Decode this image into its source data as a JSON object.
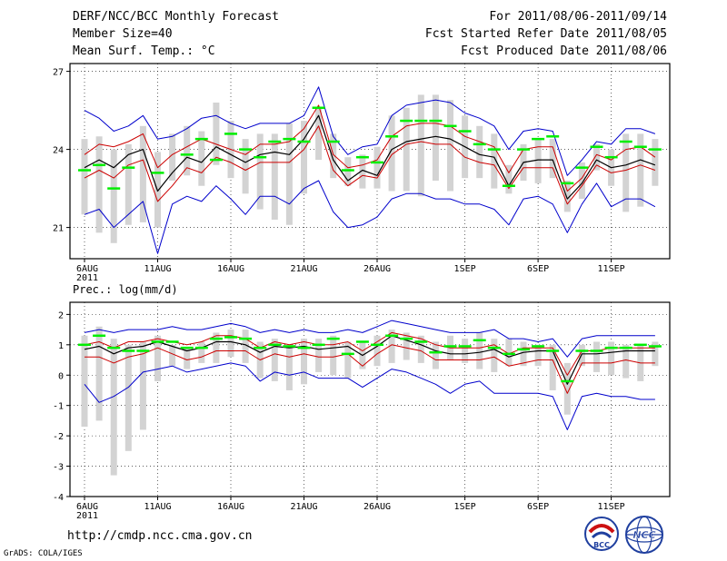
{
  "header": {
    "title": "DERF/NCC/BCC Monthly Forecast",
    "member_size": "Member Size=40",
    "variable": "Mean Surf. Temp.: °C",
    "period": "For 2011/08/06-2011/09/14",
    "fcst_started": "Fcst Started Refer Date 2011/08/05",
    "fcst_produced": "Fcst Produced Date 2011/08/06"
  },
  "footer": {
    "url": "http://cmdp.ncc.cma.gov.cn",
    "credit": "GrADS: COLA/IGES",
    "logo_bcc": "BCC",
    "logo_ncc": "NCC"
  },
  "colors": {
    "max_min": "#0000cc",
    "spread": "#cc0000",
    "mean": "#000000",
    "box": "#d3d3d3",
    "obs": "#00ee00"
  },
  "chart_data": [
    {
      "type": "line",
      "title": "Mean Surf. Temp.: °C",
      "x_tick_labels": [
        "6AUG",
        "11AUG",
        "16AUG",
        "21AUG",
        "26AUG",
        "1SEP",
        "6SEP",
        "11SEP"
      ],
      "x_year_label": "2011",
      "ylim": [
        19.8,
        27.3
      ],
      "y_ticks": [
        21,
        24,
        27
      ],
      "y_tick_labels": [
        "21",
        "24",
        "27"
      ],
      "grid": true,
      "series": [
        {
          "name": "max",
          "values": [
            25.5,
            25.2,
            24.7,
            24.9,
            25.3,
            24.4,
            24.5,
            24.8,
            25.2,
            25.3,
            25.0,
            24.8,
            25.0,
            25.0,
            25.0,
            25.3,
            26.4,
            24.5,
            23.8,
            24.1,
            24.2,
            25.3,
            25.7,
            25.8,
            25.9,
            25.8,
            25.4,
            25.2,
            24.9,
            24.0,
            24.7,
            24.8,
            24.7,
            23.0,
            23.6,
            24.3,
            24.2,
            24.8,
            24.8,
            24.6
          ]
        },
        {
          "name": "spread_upper",
          "values": [
            23.8,
            24.2,
            24.1,
            24.3,
            24.6,
            23.3,
            23.8,
            24.1,
            24.4,
            24.2,
            24.0,
            23.8,
            24.2,
            24.2,
            24.3,
            24.8,
            25.7,
            23.8,
            23.3,
            23.4,
            23.6,
            24.5,
            24.9,
            25.0,
            25.0,
            24.9,
            24.5,
            24.3,
            24.1,
            23.1,
            24.0,
            24.1,
            24.1,
            22.4,
            22.9,
            23.8,
            23.6,
            24.0,
            24.1,
            23.7
          ]
        },
        {
          "name": "ensemble_mean",
          "values": [
            23.3,
            23.6,
            23.3,
            23.8,
            24.0,
            22.4,
            23.1,
            23.7,
            23.5,
            24.1,
            23.8,
            23.5,
            23.8,
            23.9,
            23.8,
            24.4,
            25.3,
            23.6,
            22.8,
            23.2,
            23.0,
            24.0,
            24.3,
            24.4,
            24.5,
            24.4,
            24.1,
            23.8,
            23.7,
            22.6,
            23.5,
            23.6,
            23.6,
            22.1,
            22.7,
            23.6,
            23.3,
            23.4,
            23.6,
            23.4
          ]
        },
        {
          "name": "spread_lower",
          "values": [
            22.9,
            23.2,
            22.9,
            23.4,
            23.6,
            22.0,
            22.6,
            23.3,
            23.1,
            23.7,
            23.5,
            23.2,
            23.5,
            23.5,
            23.5,
            24.0,
            24.9,
            23.2,
            22.6,
            23.0,
            22.9,
            23.8,
            24.2,
            24.3,
            24.2,
            24.2,
            23.7,
            23.5,
            23.4,
            22.5,
            23.3,
            23.3,
            23.3,
            21.9,
            22.6,
            23.4,
            23.1,
            23.2,
            23.4,
            23.2
          ]
        },
        {
          "name": "min",
          "values": [
            21.5,
            21.7,
            21.0,
            21.5,
            22.0,
            20.0,
            21.9,
            22.2,
            22.0,
            22.6,
            22.1,
            21.5,
            22.2,
            22.2,
            21.9,
            22.5,
            22.8,
            21.6,
            21.0,
            21.1,
            21.4,
            22.1,
            22.3,
            22.3,
            22.1,
            22.1,
            21.9,
            21.9,
            21.7,
            21.1,
            22.1,
            22.2,
            21.9,
            20.8,
            21.9,
            22.7,
            21.8,
            22.1,
            22.1,
            21.8
          ]
        },
        {
          "name": "observed",
          "values": [
            23.2,
            23.4,
            22.5,
            23.3,
            null,
            23.1,
            null,
            23.8,
            24.4,
            23.6,
            24.6,
            24.0,
            23.7,
            24.3,
            24.4,
            24.3,
            25.6,
            24.3,
            23.2,
            23.7,
            23.5,
            24.5,
            25.1,
            25.1,
            25.1,
            24.9,
            24.7,
            24.2,
            24.0,
            22.6,
            24.0,
            24.4,
            24.5,
            22.7,
            23.3,
            24.1,
            23.7,
            24.3,
            24.1,
            24.0
          ]
        },
        {
          "name": "box_top",
          "values": [
            24.4,
            24.5,
            24.0,
            24.2,
            24.9,
            23.9,
            24.6,
            24.9,
            24.7,
            25.8,
            25.1,
            24.4,
            24.6,
            24.6,
            25.0,
            25.1,
            25.6,
            24.6,
            23.7,
            23.8,
            24.1,
            25.3,
            25.6,
            26.1,
            26.1,
            25.9,
            25.3,
            24.9,
            24.6,
            23.4,
            24.2,
            24.4,
            24.4,
            22.8,
            23.5,
            24.2,
            24.0,
            24.6,
            24.6,
            24.4
          ]
        },
        {
          "name": "box_bottom",
          "values": [
            21.5,
            20.8,
            20.4,
            21.1,
            21.2,
            21.0,
            22.8,
            23.0,
            22.6,
            23.4,
            22.9,
            22.3,
            21.7,
            21.3,
            21.1,
            22.3,
            23.6,
            22.9,
            22.6,
            22.5,
            22.5,
            22.4,
            22.4,
            22.2,
            22.8,
            22.4,
            22.9,
            22.9,
            22.5,
            22.3,
            22.8,
            22.7,
            22.9,
            21.6,
            22.1,
            23.2,
            22.6,
            21.6,
            21.8,
            22.6
          ]
        }
      ]
    },
    {
      "type": "line",
      "title": "Prec.: log(mm/d)",
      "x_tick_labels": [
        "6AUG",
        "11AUG",
        "16AUG",
        "21AUG",
        "26AUG",
        "1SEP",
        "6SEP",
        "11SEP"
      ],
      "x_year_label": "2011",
      "ylim": [
        -4,
        2.4
      ],
      "y_ticks": [
        -4,
        -3,
        -2,
        -1,
        0,
        1,
        2
      ],
      "y_tick_labels": [
        "-4",
        "-3",
        "-2",
        "-1",
        "0",
        "1",
        "2"
      ],
      "grid": true,
      "series": [
        {
          "name": "max",
          "values": [
            1.4,
            1.5,
            1.4,
            1.5,
            1.5,
            1.5,
            1.6,
            1.5,
            1.5,
            1.6,
            1.7,
            1.6,
            1.4,
            1.5,
            1.4,
            1.5,
            1.4,
            1.4,
            1.5,
            1.4,
            1.6,
            1.8,
            1.7,
            1.6,
            1.5,
            1.4,
            1.4,
            1.4,
            1.5,
            1.2,
            1.2,
            1.1,
            1.2,
            0.6,
            1.2,
            1.3,
            1.3,
            1.3,
            1.3,
            1.3
          ]
        },
        {
          "name": "spread_upper",
          "values": [
            1.0,
            1.1,
            0.9,
            1.1,
            1.1,
            1.2,
            1.1,
            1.0,
            1.1,
            1.3,
            1.3,
            1.2,
            0.9,
            1.1,
            1.0,
            1.1,
            1.0,
            1.0,
            1.1,
            0.8,
            1.1,
            1.4,
            1.3,
            1.2,
            1.0,
            0.9,
            0.9,
            0.9,
            1.0,
            0.7,
            0.9,
            0.9,
            0.9,
            0.0,
            0.8,
            0.8,
            0.9,
            0.9,
            0.9,
            0.9
          ]
        },
        {
          "name": "ensemble_mean",
          "values": [
            0.85,
            0.95,
            0.7,
            0.9,
            0.95,
            1.1,
            0.95,
            0.8,
            0.9,
            1.1,
            1.1,
            1.0,
            0.75,
            0.95,
            0.9,
            0.95,
            0.85,
            0.9,
            0.95,
            0.65,
            0.95,
            1.3,
            1.15,
            1.0,
            0.8,
            0.7,
            0.7,
            0.75,
            0.85,
            0.6,
            0.75,
            0.8,
            0.8,
            -0.3,
            0.7,
            0.7,
            0.75,
            0.8,
            0.8,
            0.8
          ]
        },
        {
          "name": "spread_lower",
          "values": [
            0.6,
            0.6,
            0.4,
            0.6,
            0.7,
            0.9,
            0.7,
            0.5,
            0.6,
            0.8,
            0.8,
            0.8,
            0.5,
            0.7,
            0.6,
            0.7,
            0.6,
            0.6,
            0.7,
            0.3,
            0.7,
            1.0,
            0.9,
            0.8,
            0.5,
            0.5,
            0.5,
            0.5,
            0.6,
            0.3,
            0.4,
            0.5,
            0.5,
            -0.6,
            0.4,
            0.4,
            0.4,
            0.5,
            0.4,
            0.4
          ]
        },
        {
          "name": "min",
          "values": [
            -0.3,
            -0.9,
            -0.7,
            -0.4,
            0.1,
            0.2,
            0.3,
            0.1,
            0.2,
            0.3,
            0.4,
            0.3,
            -0.2,
            0.1,
            0.0,
            0.1,
            -0.1,
            -0.1,
            -0.1,
            -0.4,
            -0.1,
            0.2,
            0.1,
            -0.1,
            -0.3,
            -0.6,
            -0.3,
            -0.2,
            -0.6,
            -0.6,
            -0.6,
            -0.6,
            -0.7,
            -1.8,
            -0.7,
            -0.6,
            -0.7,
            -0.7,
            -0.8,
            -0.8
          ]
        },
        {
          "name": "observed",
          "values": [
            1.0,
            1.3,
            0.9,
            0.8,
            0.8,
            1.1,
            1.1,
            0.9,
            0.9,
            1.2,
            1.25,
            1.2,
            0.9,
            1.0,
            0.95,
            0.9,
            1.0,
            1.2,
            0.7,
            1.1,
            1.0,
            1.3,
            1.2,
            1.1,
            0.75,
            0.95,
            0.95,
            1.15,
            0.9,
            0.7,
            0.85,
            0.95,
            0.8,
            -0.2,
            0.8,
            0.8,
            0.9,
            0.9,
            1.0,
            0.95
          ]
        },
        {
          "name": "box_top",
          "values": [
            1.3,
            1.6,
            1.2,
            1.0,
            1.1,
            1.3,
            1.0,
            0.9,
            1.1,
            1.4,
            1.5,
            1.5,
            1.1,
            1.2,
            1.0,
            1.2,
            1.2,
            1.3,
            1.1,
            1.1,
            1.3,
            1.5,
            1.4,
            1.3,
            1.1,
            1.3,
            1.2,
            1.4,
            1.2,
            1.2,
            1.1,
            1.0,
            1.0,
            0.4,
            1.0,
            1.1,
            1.1,
            1.0,
            1.0,
            1.1
          ]
        },
        {
          "name": "box_bottom",
          "values": [
            -1.7,
            -1.5,
            -3.3,
            -2.5,
            -1.8,
            -0.2,
            0.3,
            0.2,
            0.4,
            0.4,
            0.6,
            0.4,
            -0.1,
            -0.2,
            -0.5,
            -0.3,
            0.1,
            0.0,
            -0.1,
            0.2,
            0.3,
            0.4,
            0.5,
            0.4,
            0.2,
            0.5,
            0.4,
            0.2,
            0.1,
            0.3,
            0.3,
            0.3,
            -0.5,
            -1.3,
            0.3,
            0.1,
            0.0,
            -0.1,
            -0.2,
            0.3
          ]
        }
      ]
    }
  ]
}
